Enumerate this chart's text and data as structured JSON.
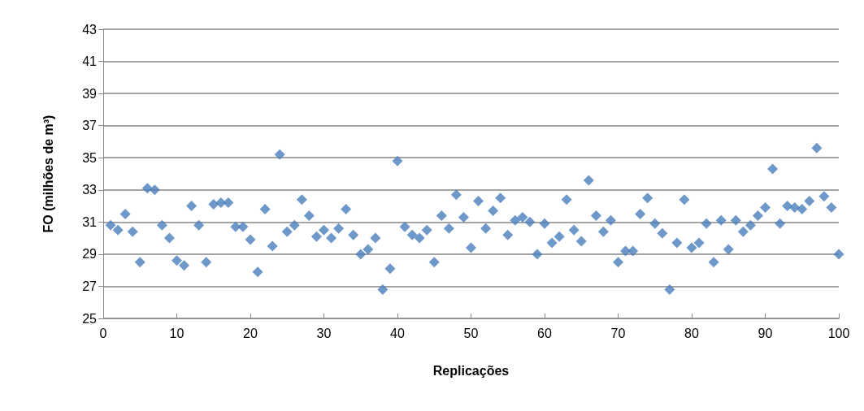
{
  "chart_data": {
    "type": "scatter",
    "xlabel": "Replicações",
    "ylabel": "FO (milhões de m³)",
    "x": [
      1,
      2,
      3,
      4,
      5,
      6,
      7,
      8,
      9,
      10,
      11,
      12,
      13,
      14,
      15,
      16,
      17,
      18,
      19,
      20,
      21,
      22,
      23,
      24,
      25,
      26,
      27,
      28,
      29,
      30,
      31,
      32,
      33,
      34,
      35,
      36,
      37,
      38,
      39,
      40,
      41,
      42,
      43,
      44,
      45,
      46,
      47,
      48,
      49,
      50,
      51,
      52,
      53,
      54,
      55,
      56,
      57,
      58,
      59,
      60,
      61,
      62,
      63,
      64,
      65,
      66,
      67,
      68,
      69,
      70,
      71,
      72,
      73,
      74,
      75,
      76,
      77,
      78,
      79,
      80,
      81,
      82,
      83,
      84,
      85,
      86,
      87,
      88,
      89,
      90,
      91,
      92,
      93,
      94,
      95,
      96,
      97,
      98,
      99,
      100
    ],
    "series": [
      {
        "color": "#4a7ebb",
        "values": [
          30.8,
          30.5,
          31.5,
          30.4,
          28.5,
          33.1,
          33.0,
          30.8,
          30.0,
          28.6,
          28.3,
          32.0,
          30.8,
          28.5,
          32.1,
          32.2,
          32.2,
          30.7,
          30.7,
          29.9,
          27.9,
          31.8,
          29.5,
          35.2,
          30.4,
          30.8,
          32.4,
          31.4,
          30.1,
          30.5,
          30.0,
          30.6,
          31.8,
          30.2,
          29.0,
          29.3,
          30.0,
          26.8,
          28.1,
          34.8,
          30.7,
          30.2,
          30.0,
          30.5,
          28.5,
          31.4,
          30.6,
          32.7,
          31.3,
          29.4,
          32.3,
          30.6,
          31.7,
          32.5,
          30.2,
          31.1,
          31.3,
          31.0,
          29.0,
          30.9,
          29.7,
          30.1,
          32.4,
          30.5,
          29.8,
          33.6,
          31.4,
          30.4,
          31.1,
          28.5,
          29.2,
          29.2,
          31.5,
          32.5,
          30.9,
          30.3,
          26.8,
          29.7,
          32.4,
          29.4,
          29.7,
          30.9,
          28.5,
          31.1,
          29.3,
          31.1,
          30.4,
          30.8,
          31.4,
          31.9,
          34.3,
          30.9,
          32.0,
          31.9,
          31.8,
          32.3,
          35.6,
          32.6,
          31.9,
          29.0
        ]
      }
    ],
    "xlim": [
      0,
      100
    ],
    "xticks": [
      0,
      10,
      20,
      30,
      40,
      50,
      60,
      70,
      80,
      90,
      100
    ],
    "ylim": [
      25,
      43
    ],
    "yticks": [
      25,
      27,
      29,
      31,
      33,
      35,
      37,
      39,
      41,
      43
    ],
    "grid": "y",
    "marker": "diamond"
  }
}
